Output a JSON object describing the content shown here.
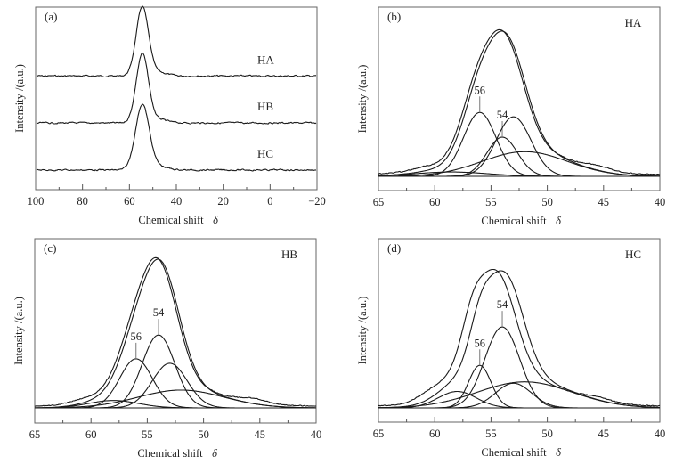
{
  "chart_data": [
    {
      "id": "a",
      "type": "line",
      "panel_label": "(a)",
      "title": "",
      "xlabel": "Chemical shift",
      "xlabel_symbol": "δ",
      "ylabel": "Intensity /(a.u.)",
      "xlim": [
        100,
        -20
      ],
      "xticks": [
        100,
        80,
        60,
        40,
        20,
        0,
        -20
      ],
      "xtick_labels": [
        "100",
        "80",
        "60",
        "40",
        "20",
        "0",
        "−20"
      ],
      "minor_xtick_step": 10,
      "ylim": [
        0,
        1
      ],
      "grid": false,
      "series": [
        {
          "name": "HA",
          "baseline": 0.56,
          "peak_center": 54.5,
          "peak_height": 0.38,
          "peak_width": 2.6,
          "tail": 0.02
        },
        {
          "name": "HB",
          "baseline": 0.3,
          "peak_center": 54.5,
          "peak_height": 0.38,
          "peak_width": 2.6,
          "tail": 0.02
        },
        {
          "name": "HC",
          "baseline": 0.04,
          "peak_center": 54.5,
          "peak_height": 0.36,
          "peak_width": 2.9,
          "tail": 0.02
        }
      ]
    },
    {
      "id": "b",
      "type": "line",
      "panel_label": "(b)",
      "sample": "HA",
      "xlabel": "Chemical shift",
      "xlabel_symbol": "δ",
      "ylabel": "Intensity /(a.u.)",
      "xlim": [
        65,
        40
      ],
      "xticks": [
        65,
        60,
        55,
        50,
        45,
        40
      ],
      "xtick_labels": [
        "65",
        "60",
        "55",
        "50",
        "45",
        "40"
      ],
      "minor_xtick_step": 2.5,
      "ylim": [
        -0.1,
        1.05
      ],
      "grid": false,
      "components": [
        {
          "center": 56.0,
          "height": 0.44,
          "sigma": 1.45,
          "label": "56"
        },
        {
          "center": 54.0,
          "height": 0.27,
          "sigma": 1.35,
          "label": "54"
        },
        {
          "center": 53.0,
          "height": 0.41,
          "sigma": 1.55,
          "label": ""
        },
        {
          "center": 52.0,
          "height": 0.17,
          "sigma": 3.8,
          "label": ""
        },
        {
          "center": 58.5,
          "height": 0.03,
          "sigma": 3.2,
          "label": ""
        }
      ],
      "envelope_peak": 1.0,
      "experimental_peak_center": 54.5
    },
    {
      "id": "c",
      "type": "line",
      "panel_label": "(c)",
      "sample": "HB",
      "xlabel": "Chemical shift",
      "xlabel_symbol": "δ",
      "ylabel": "Intensity /(a.u.)",
      "xlim": [
        65,
        40
      ],
      "xticks": [
        65,
        60,
        55,
        50,
        45,
        40
      ],
      "xtick_labels": [
        "65",
        "60",
        "55",
        "50",
        "45",
        "40"
      ],
      "minor_xtick_step": 2.5,
      "ylim": [
        -0.1,
        1.05
      ],
      "grid": false,
      "components": [
        {
          "center": 56.0,
          "height": 0.33,
          "sigma": 1.45,
          "label": "56"
        },
        {
          "center": 54.0,
          "height": 0.49,
          "sigma": 1.45,
          "label": "54"
        },
        {
          "center": 53.0,
          "height": 0.3,
          "sigma": 1.55,
          "label": ""
        },
        {
          "center": 52.0,
          "height": 0.12,
          "sigma": 3.8,
          "label": ""
        },
        {
          "center": 58.0,
          "height": 0.05,
          "sigma": 2.2,
          "label": ""
        }
      ],
      "envelope_peak": 1.0,
      "experimental_peak_center": 54.5
    },
    {
      "id": "d",
      "type": "line",
      "panel_label": "(d)",
      "sample": "HC",
      "xlabel": "Chemical shift",
      "xlabel_symbol": "δ",
      "ylabel": "Intensity /(a.u.)",
      "xlim": [
        65,
        40
      ],
      "xticks": [
        65,
        60,
        55,
        50,
        45,
        40
      ],
      "xtick_labels": [
        "65",
        "60",
        "55",
        "50",
        "45",
        "40"
      ],
      "minor_xtick_step": 2.5,
      "ylim": [
        -0.1,
        1.05
      ],
      "grid": false,
      "components": [
        {
          "center": 56.0,
          "height": 0.31,
          "sigma": 1.0,
          "label": "56"
        },
        {
          "center": 54.0,
          "height": 0.59,
          "sigma": 1.55,
          "label": "54"
        },
        {
          "center": 53.0,
          "height": 0.18,
          "sigma": 1.6,
          "label": ""
        },
        {
          "center": 52.0,
          "height": 0.19,
          "sigma": 4.2,
          "label": ""
        },
        {
          "center": 58.0,
          "height": 0.12,
          "sigma": 1.7,
          "label": ""
        }
      ],
      "envelope_peak": 1.0,
      "experimental_peak_center": 55.0
    }
  ]
}
